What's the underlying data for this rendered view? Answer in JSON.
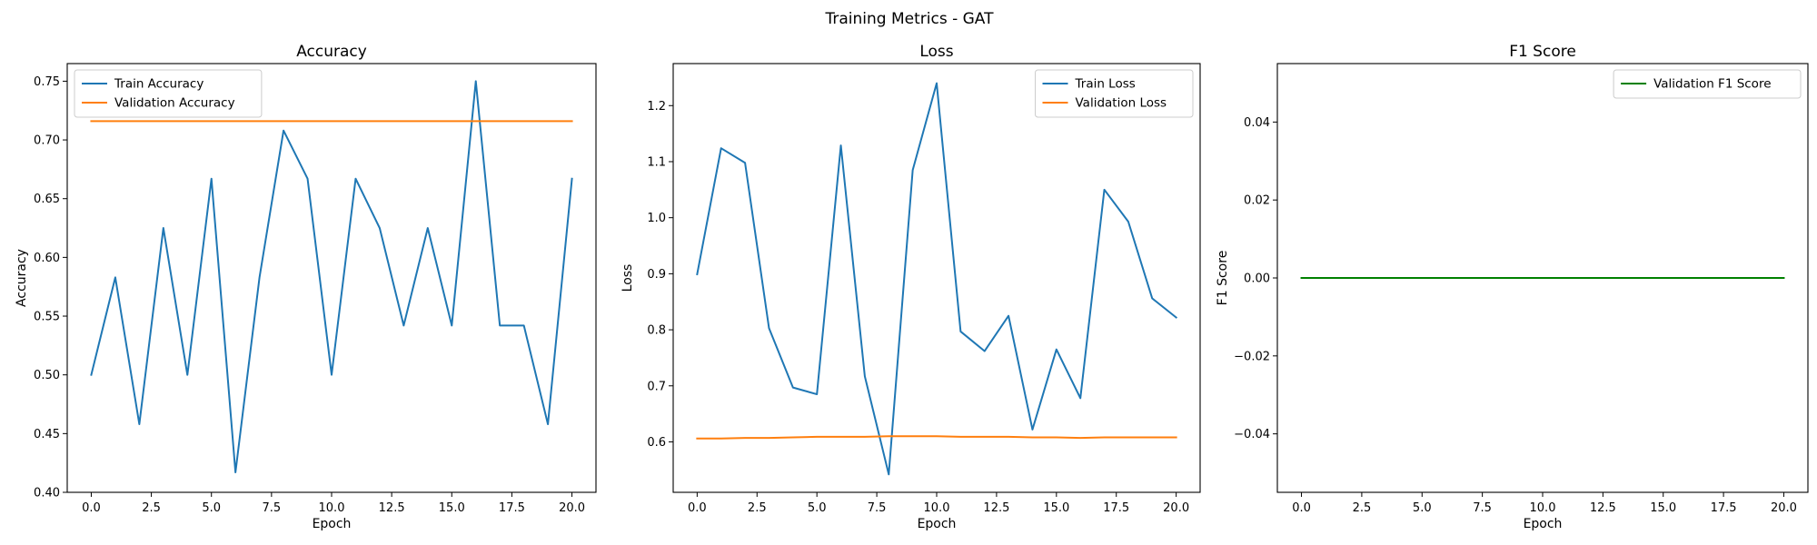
{
  "figure": {
    "suptitle": "Training Metrics - GAT"
  },
  "colors": {
    "train": "#1f77b4",
    "validation": "#ff7f0e",
    "f1": "#008000",
    "frame": "#000000",
    "legend_edge": "#cccccc"
  },
  "chart_data": [
    {
      "type": "line",
      "title": "Accuracy",
      "xlabel": "Epoch",
      "ylabel": "Accuracy",
      "xlim": [
        -1,
        21
      ],
      "ylim": [
        0.4,
        0.765
      ],
      "xticks": [
        0,
        2.5,
        5,
        7.5,
        10,
        12.5,
        15,
        17.5,
        20
      ],
      "xtick_labels": [
        "0.0",
        "2.5",
        "5.0",
        "7.5",
        "10.0",
        "12.5",
        "15.0",
        "17.5",
        "20.0"
      ],
      "yticks": [
        0.4,
        0.45,
        0.5,
        0.55,
        0.6,
        0.65,
        0.7,
        0.75
      ],
      "ytick_labels": [
        "0.40",
        "0.45",
        "0.50",
        "0.55",
        "0.60",
        "0.65",
        "0.70",
        "0.75"
      ],
      "legend": "top-left",
      "grid": false,
      "x": [
        0,
        1,
        2,
        3,
        4,
        5,
        6,
        7,
        8,
        9,
        10,
        11,
        12,
        13,
        14,
        15,
        16,
        17,
        18,
        19,
        20
      ],
      "series": [
        {
          "name": "Train Accuracy",
          "color": "#1f77b4",
          "values": [
            0.5,
            0.583,
            0.458,
            0.625,
            0.5,
            0.667,
            0.417,
            0.583,
            0.708,
            0.667,
            0.5,
            0.667,
            0.625,
            0.542,
            0.625,
            0.542,
            0.75,
            0.542,
            0.542,
            0.458,
            0.667
          ]
        },
        {
          "name": "Validation Accuracy",
          "color": "#ff7f0e",
          "values": [
            0.716,
            0.716,
            0.716,
            0.716,
            0.716,
            0.716,
            0.716,
            0.716,
            0.716,
            0.716,
            0.716,
            0.716,
            0.716,
            0.716,
            0.716,
            0.716,
            0.716,
            0.716,
            0.716,
            0.716,
            0.716
          ]
        }
      ]
    },
    {
      "type": "line",
      "title": "Loss",
      "xlabel": "Epoch",
      "ylabel": "Loss",
      "xlim": [
        -1,
        21
      ],
      "ylim": [
        0.51,
        1.275
      ],
      "xticks": [
        0,
        2.5,
        5,
        7.5,
        10,
        12.5,
        15,
        17.5,
        20
      ],
      "xtick_labels": [
        "0.0",
        "2.5",
        "5.0",
        "7.5",
        "10.0",
        "12.5",
        "15.0",
        "17.5",
        "20.0"
      ],
      "yticks": [
        0.6,
        0.7,
        0.8,
        0.9,
        1.0,
        1.1,
        1.2
      ],
      "ytick_labels": [
        "0.6",
        "0.7",
        "0.8",
        "0.9",
        "1.0",
        "1.1",
        "1.2"
      ],
      "legend": "top-right",
      "grid": false,
      "x": [
        0,
        1,
        2,
        3,
        4,
        5,
        6,
        7,
        8,
        9,
        10,
        11,
        12,
        13,
        14,
        15,
        16,
        17,
        18,
        19,
        20
      ],
      "series": [
        {
          "name": "Train Loss",
          "color": "#1f77b4",
          "values": [
            0.899,
            1.124,
            1.098,
            0.803,
            0.697,
            0.685,
            1.129,
            0.717,
            0.542,
            1.085,
            1.24,
            0.797,
            0.762,
            0.825,
            0.622,
            0.765,
            0.678,
            1.05,
            0.993,
            0.856,
            0.822
          ]
        },
        {
          "name": "Validation Loss",
          "color": "#ff7f0e",
          "values": [
            0.606,
            0.606,
            0.607,
            0.607,
            0.608,
            0.609,
            0.609,
            0.609,
            0.61,
            0.61,
            0.61,
            0.609,
            0.609,
            0.609,
            0.608,
            0.608,
            0.607,
            0.608,
            0.608,
            0.608,
            0.608
          ]
        }
      ]
    },
    {
      "type": "line",
      "title": "F1 Score",
      "xlabel": "Epoch",
      "ylabel": "F1 Score",
      "xlim": [
        -1,
        21
      ],
      "ylim": [
        -0.055,
        0.055
      ],
      "xticks": [
        0,
        2.5,
        5,
        7.5,
        10,
        12.5,
        15,
        17.5,
        20
      ],
      "xtick_labels": [
        "0.0",
        "2.5",
        "5.0",
        "7.5",
        "10.0",
        "12.5",
        "15.0",
        "17.5",
        "20.0"
      ],
      "yticks": [
        -0.04,
        -0.02,
        0.0,
        0.02,
        0.04
      ],
      "ytick_labels": [
        "−0.04",
        "−0.02",
        "0.00",
        "0.02",
        "0.04"
      ],
      "legend": "top-right",
      "grid": false,
      "x": [
        0,
        1,
        2,
        3,
        4,
        5,
        6,
        7,
        8,
        9,
        10,
        11,
        12,
        13,
        14,
        15,
        16,
        17,
        18,
        19,
        20
      ],
      "series": [
        {
          "name": "Validation F1 Score",
          "color": "#008000",
          "values": [
            0,
            0,
            0,
            0,
            0,
            0,
            0,
            0,
            0,
            0,
            0,
            0,
            0,
            0,
            0,
            0,
            0,
            0,
            0,
            0,
            0
          ]
        }
      ]
    }
  ]
}
